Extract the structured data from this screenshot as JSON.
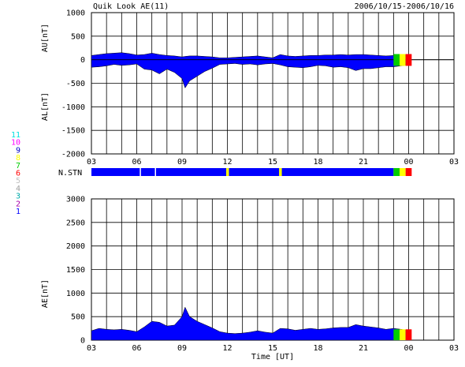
{
  "header": {
    "title": "Quik Look AE(11)",
    "date_range": "2006/10/15-2006/10/16"
  },
  "station_legend": [
    {
      "label": "11",
      "color": "#00e0e0"
    },
    {
      "label": "10",
      "color": "#ff00ff"
    },
    {
      "label": "9",
      "color": "#0000cc"
    },
    {
      "label": "8",
      "color": "#ffff00"
    },
    {
      "label": "7",
      "color": "#00cc00"
    },
    {
      "label": "6",
      "color": "#ff0000"
    },
    {
      "label": "5",
      "color": "#c0c0c0"
    },
    {
      "label": "4",
      "color": "#a0a0a0"
    },
    {
      "label": "3",
      "color": "#00aaaa"
    },
    {
      "label": "2",
      "color": "#aa00aa"
    },
    {
      "label": "1",
      "color": "#0000ff"
    }
  ],
  "chart_data": [
    {
      "type": "area",
      "id": "au_al",
      "ylabel_top": "AU[nT]",
      "ylabel_bottom": "AL[nT]",
      "ylim": [
        -2000,
        1000
      ],
      "yticks": [
        1000,
        500,
        0,
        -500,
        -1000,
        -1500,
        -2000
      ],
      "xlim": [
        3,
        27
      ],
      "xticks": [
        "03",
        "06",
        "09",
        "12",
        "15",
        "18",
        "21",
        "00",
        "03"
      ],
      "grid": true,
      "fill_color": "#0000ff",
      "x_hours": [
        3.0,
        3.5,
        4.0,
        4.5,
        5.0,
        5.5,
        6.0,
        6.5,
        7.0,
        7.5,
        8.0,
        8.5,
        9.0,
        9.2,
        9.5,
        10.0,
        10.5,
        11.0,
        11.5,
        12.0,
        12.5,
        13.0,
        13.5,
        14.0,
        14.5,
        15.0,
        15.5,
        16.0,
        16.5,
        17.0,
        17.5,
        18.0,
        18.5,
        19.0,
        19.5,
        20.0,
        20.5,
        21.0,
        21.5,
        22.0,
        22.5,
        23.0,
        23.5,
        24.0
      ],
      "au_nT": [
        90,
        110,
        130,
        140,
        150,
        130,
        100,
        110,
        140,
        110,
        90,
        80,
        60,
        70,
        80,
        80,
        70,
        60,
        40,
        40,
        50,
        60,
        70,
        80,
        60,
        40,
        110,
        80,
        70,
        80,
        90,
        90,
        100,
        100,
        110,
        100,
        110,
        110,
        100,
        90,
        80,
        90,
        110,
        110
      ],
      "al_nT": [
        -160,
        -150,
        -130,
        -100,
        -120,
        -110,
        -90,
        -200,
        -220,
        -300,
        -200,
        -270,
        -400,
        -600,
        -450,
        -350,
        -250,
        -180,
        -100,
        -90,
        -80,
        -100,
        -90,
        -110,
        -90,
        -80,
        -110,
        -150,
        -160,
        -170,
        -150,
        -120,
        -130,
        -160,
        -150,
        -170,
        -230,
        -190,
        -190,
        -170,
        -150,
        -150,
        -130,
        -110
      ],
      "current_segment": {
        "start_hour": 23.0,
        "end_hour": 24.2,
        "colors": [
          "#00cc00",
          "#ffff00",
          "#ff0000"
        ]
      }
    },
    {
      "type": "bar",
      "id": "n_stn",
      "label": "N.STN",
      "xlim": [
        3,
        27
      ],
      "bar_color": "#0000ff",
      "marker_hours": [
        12.0,
        15.5
      ],
      "marker_color": "#ffff00",
      "divider_hours": [
        6.2,
        7.2
      ],
      "end_hour": 23.0,
      "current_segment": {
        "start_hour": 23.0,
        "end_hour": 24.2,
        "colors": [
          "#00cc00",
          "#ffff00",
          "#ff0000"
        ]
      }
    },
    {
      "type": "area",
      "id": "ae",
      "ylabel": "AE[nT]",
      "xlabel": "Time [UT]",
      "ylim": [
        0,
        3000
      ],
      "yticks": [
        3000,
        2500,
        2000,
        1500,
        1000,
        500,
        0
      ],
      "xlim": [
        3,
        27
      ],
      "xticks": [
        "03",
        "06",
        "09",
        "12",
        "15",
        "18",
        "21",
        "00",
        "03"
      ],
      "grid": true,
      "fill_color": "#0000ff",
      "x_hours": [
        3.0,
        3.5,
        4.0,
        4.5,
        5.0,
        5.5,
        6.0,
        6.5,
        7.0,
        7.5,
        8.0,
        8.5,
        9.0,
        9.2,
        9.5,
        10.0,
        10.5,
        11.0,
        11.5,
        12.0,
        12.5,
        13.0,
        13.5,
        14.0,
        14.5,
        15.0,
        15.5,
        16.0,
        16.5,
        17.0,
        17.5,
        18.0,
        18.5,
        19.0,
        19.5,
        20.0,
        20.5,
        21.0,
        21.5,
        22.0,
        22.5,
        23.0,
        23.5,
        24.0
      ],
      "ae_nT": [
        200,
        250,
        230,
        220,
        230,
        210,
        180,
        280,
        400,
        380,
        300,
        320,
        500,
        700,
        500,
        400,
        330,
        260,
        180,
        150,
        140,
        150,
        170,
        200,
        170,
        150,
        250,
        240,
        210,
        230,
        250,
        230,
        240,
        260,
        270,
        270,
        330,
        300,
        280,
        260,
        230,
        250,
        230,
        200
      ],
      "current_segment": {
        "start_hour": 23.0,
        "end_hour": 24.2,
        "colors": [
          "#00cc00",
          "#ffff00",
          "#ff0000"
        ]
      }
    }
  ]
}
